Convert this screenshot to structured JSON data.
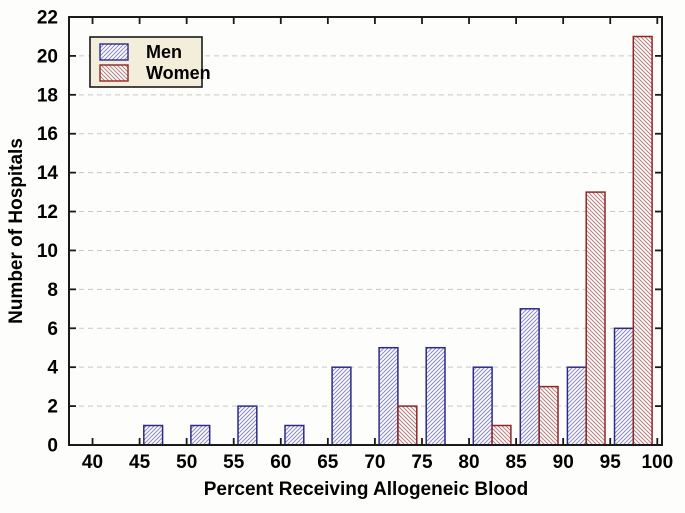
{
  "chart_data": {
    "type": "bar",
    "subtype": "grouped-histogram",
    "title": "",
    "xlabel": "Percent Receiving Allogeneic Blood",
    "ylabel": "Number of Hospitals",
    "bin_width": 5,
    "bin_starts": [
      40,
      45,
      50,
      55,
      60,
      65,
      70,
      75,
      80,
      85,
      90,
      95
    ],
    "series": [
      {
        "name": "Men",
        "values": [
          0,
          1,
          1,
          2,
          1,
          4,
          5,
          5,
          4,
          7,
          4,
          6
        ],
        "border_color": "#2b2b85",
        "hatch_color": "#8f8fbe",
        "hatch_direction": "forward-slash"
      },
      {
        "name": "Women",
        "values": [
          0,
          0,
          0,
          0,
          0,
          0,
          2,
          0,
          1,
          3,
          13,
          21
        ],
        "border_color": "#8f2727",
        "hatch_color": "#c28080",
        "hatch_direction": "back-slash"
      }
    ],
    "x_ticks": [
      40,
      45,
      50,
      55,
      60,
      65,
      70,
      75,
      80,
      85,
      90,
      95,
      100
    ],
    "y_ticks": [
      0,
      2,
      4,
      6,
      8,
      10,
      12,
      14,
      16,
      18,
      20,
      22
    ],
    "xlim": [
      37.5,
      100.5
    ],
    "ylim": [
      0,
      22
    ],
    "grid": {
      "horizontal": true,
      "style": "dashed",
      "color": "#c8c8c8"
    },
    "legend": {
      "position": "top-left",
      "bg_color": "#f2eed9",
      "border_color": "#1a1a1a"
    },
    "axis_color": "#1a1a1a",
    "bar_fill": "#ffffff"
  }
}
